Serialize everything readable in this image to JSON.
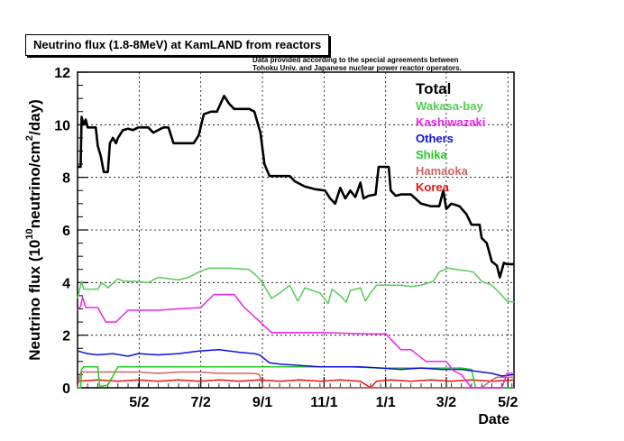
{
  "chart_data": {
    "type": "line",
    "title": "Neutrino flux (1.8-8MeV) at KamLAND from reactors",
    "notes": [
      "Data provided according to the special agreements between",
      "Tohoku Univ. and Japanese nuclear power reactor operators."
    ],
    "xlabel": "Date",
    "ylabel_main": "Neutrino flux (10",
    "ylabel_exp": "10",
    "ylabel_mid": "neutrino/cm",
    "ylabel_exp2": "2",
    "ylabel_end": "/day)",
    "x_unit": "days since start of plot",
    "xlim": [
      0,
      432
    ],
    "ylim": [
      0,
      12
    ],
    "y_ticks": [
      0,
      2,
      4,
      6,
      8,
      10,
      12
    ],
    "x_ticks": [
      {
        "label": "5/2",
        "x": 61
      },
      {
        "label": "7/2",
        "x": 122
      },
      {
        "label": "9/1",
        "x": 183
      },
      {
        "label": "11/1",
        "x": 244
      },
      {
        "label": "1/1",
        "x": 305
      },
      {
        "label": "3/2",
        "x": 365
      },
      {
        "label": "5/2",
        "x": 426
      }
    ],
    "grid": true,
    "legend_position": "top-right",
    "series": [
      {
        "name": "Total",
        "color": "#000000",
        "points": [
          [
            0,
            8.4
          ],
          [
            3,
            8.4
          ],
          [
            4,
            10.3
          ],
          [
            6,
            10.0
          ],
          [
            8,
            10.2
          ],
          [
            10,
            9.9
          ],
          [
            18,
            9.9
          ],
          [
            20,
            9.2
          ],
          [
            23,
            8.8
          ],
          [
            26,
            8.2
          ],
          [
            30,
            8.2
          ],
          [
            32,
            9.3
          ],
          [
            35,
            9.5
          ],
          [
            38,
            9.3
          ],
          [
            40,
            9.5
          ],
          [
            45,
            9.8
          ],
          [
            50,
            9.85
          ],
          [
            55,
            9.8
          ],
          [
            60,
            9.9
          ],
          [
            70,
            9.9
          ],
          [
            75,
            9.7
          ],
          [
            80,
            9.8
          ],
          [
            85,
            9.9
          ],
          [
            90,
            9.9
          ],
          [
            95,
            9.3
          ],
          [
            105,
            9.3
          ],
          [
            115,
            9.3
          ],
          [
            120,
            9.6
          ],
          [
            125,
            10.4
          ],
          [
            132,
            10.5
          ],
          [
            138,
            10.5
          ],
          [
            145,
            11.1
          ],
          [
            150,
            10.8
          ],
          [
            155,
            10.6
          ],
          [
            160,
            10.6
          ],
          [
            170,
            10.6
          ],
          [
            175,
            10.5
          ],
          [
            181,
            9.7
          ],
          [
            185,
            8.5
          ],
          [
            190,
            8.05
          ],
          [
            200,
            8.05
          ],
          [
            210,
            8.05
          ],
          [
            215,
            7.85
          ],
          [
            225,
            7.65
          ],
          [
            235,
            7.55
          ],
          [
            245,
            7.5
          ],
          [
            250,
            7.2
          ],
          [
            255,
            7.0
          ],
          [
            260,
            7.6
          ],
          [
            265,
            7.2
          ],
          [
            270,
            7.5
          ],
          [
            275,
            7.25
          ],
          [
            280,
            7.8
          ],
          [
            283,
            7.2
          ],
          [
            288,
            7.3
          ],
          [
            295,
            7.35
          ],
          [
            298,
            8.4
          ],
          [
            308,
            8.4
          ],
          [
            310,
            7.5
          ],
          [
            315,
            7.3
          ],
          [
            320,
            7.35
          ],
          [
            330,
            7.35
          ],
          [
            340,
            7.0
          ],
          [
            350,
            6.9
          ],
          [
            358,
            6.9
          ],
          [
            362,
            7.5
          ],
          [
            365,
            6.8
          ],
          [
            370,
            7.0
          ],
          [
            378,
            6.9
          ],
          [
            385,
            6.6
          ],
          [
            390,
            6.2
          ],
          [
            398,
            6.2
          ],
          [
            400,
            5.7
          ],
          [
            405,
            5.5
          ],
          [
            410,
            4.8
          ],
          [
            415,
            4.65
          ],
          [
            418,
            4.2
          ],
          [
            422,
            4.75
          ],
          [
            425,
            4.7
          ],
          [
            432,
            4.7
          ]
        ]
      },
      {
        "name": "Wakasa-bay",
        "color": "#55cc55",
        "points": [
          [
            0,
            3.4
          ],
          [
            3,
            3.9
          ],
          [
            4,
            4.05
          ],
          [
            6,
            3.75
          ],
          [
            20,
            3.75
          ],
          [
            24,
            4.0
          ],
          [
            30,
            3.8
          ],
          [
            40,
            4.15
          ],
          [
            45,
            4.05
          ],
          [
            55,
            4.05
          ],
          [
            70,
            4.0
          ],
          [
            80,
            4.2
          ],
          [
            90,
            4.15
          ],
          [
            100,
            4.1
          ],
          [
            110,
            4.2
          ],
          [
            120,
            4.4
          ],
          [
            130,
            4.55
          ],
          [
            150,
            4.55
          ],
          [
            170,
            4.5
          ],
          [
            180,
            4.15
          ],
          [
            186,
            3.8
          ],
          [
            192,
            3.4
          ],
          [
            200,
            3.6
          ],
          [
            210,
            3.9
          ],
          [
            218,
            3.3
          ],
          [
            225,
            3.8
          ],
          [
            240,
            3.6
          ],
          [
            248,
            3.2
          ],
          [
            252,
            3.75
          ],
          [
            260,
            3.5
          ],
          [
            266,
            3.25
          ],
          [
            270,
            3.7
          ],
          [
            280,
            3.8
          ],
          [
            285,
            3.3
          ],
          [
            290,
            3.6
          ],
          [
            296,
            3.9
          ],
          [
            310,
            3.9
          ],
          [
            320,
            3.9
          ],
          [
            330,
            3.85
          ],
          [
            340,
            3.9
          ],
          [
            352,
            4.05
          ],
          [
            358,
            4.4
          ],
          [
            366,
            4.55
          ],
          [
            375,
            4.5
          ],
          [
            385,
            4.45
          ],
          [
            392,
            4.4
          ],
          [
            400,
            4.05
          ],
          [
            410,
            3.9
          ],
          [
            418,
            3.6
          ],
          [
            425,
            3.3
          ],
          [
            432,
            3.25
          ]
        ]
      },
      {
        "name": "Kashiwazaki",
        "color": "#ee22ee",
        "points": [
          [
            0,
            2.95
          ],
          [
            3,
            3.1
          ],
          [
            5,
            3.45
          ],
          [
            8,
            3.05
          ],
          [
            20,
            3.05
          ],
          [
            28,
            2.5
          ],
          [
            38,
            2.5
          ],
          [
            50,
            2.95
          ],
          [
            80,
            2.95
          ],
          [
            100,
            3.0
          ],
          [
            122,
            3.05
          ],
          [
            135,
            3.55
          ],
          [
            155,
            3.55
          ],
          [
            165,
            3.05
          ],
          [
            178,
            2.6
          ],
          [
            192,
            2.1
          ],
          [
            210,
            2.1
          ],
          [
            240,
            2.1
          ],
          [
            290,
            2.05
          ],
          [
            305,
            2.05
          ],
          [
            320,
            1.45
          ],
          [
            330,
            1.45
          ],
          [
            345,
            1.0
          ],
          [
            365,
            1.0
          ],
          [
            372,
            0.65
          ],
          [
            380,
            0.5
          ],
          [
            390,
            0.0
          ],
          [
            400,
            0.0
          ],
          [
            420,
            0.0
          ],
          [
            425,
            0.55
          ],
          [
            432,
            0.55
          ]
        ]
      },
      {
        "name": "Others",
        "color": "#1111dd",
        "points": [
          [
            0,
            1.4
          ],
          [
            10,
            1.3
          ],
          [
            20,
            1.25
          ],
          [
            35,
            1.3
          ],
          [
            50,
            1.2
          ],
          [
            60,
            1.3
          ],
          [
            80,
            1.25
          ],
          [
            100,
            1.3
          ],
          [
            120,
            1.4
          ],
          [
            140,
            1.45
          ],
          [
            160,
            1.35
          ],
          [
            175,
            1.3
          ],
          [
            180,
            1.25
          ],
          [
            185,
            1.1
          ],
          [
            190,
            0.95
          ],
          [
            200,
            0.9
          ],
          [
            220,
            0.85
          ],
          [
            240,
            0.8
          ],
          [
            260,
            0.8
          ],
          [
            280,
            0.8
          ],
          [
            300,
            0.75
          ],
          [
            320,
            0.7
          ],
          [
            340,
            0.75
          ],
          [
            360,
            0.7
          ],
          [
            380,
            0.7
          ],
          [
            400,
            0.6
          ],
          [
            410,
            0.55
          ],
          [
            420,
            0.45
          ],
          [
            432,
            0.5
          ]
        ]
      },
      {
        "name": "Shika",
        "color": "#22cc22",
        "points": [
          [
            0,
            0.0
          ],
          [
            3,
            0.0
          ],
          [
            4,
            0.7
          ],
          [
            6,
            0.8
          ],
          [
            20,
            0.8
          ],
          [
            22,
            0.05
          ],
          [
            30,
            0.1
          ],
          [
            40,
            0.8
          ],
          [
            70,
            0.8
          ],
          [
            100,
            0.8
          ],
          [
            140,
            0.8
          ],
          [
            180,
            0.8
          ],
          [
            210,
            0.8
          ],
          [
            240,
            0.8
          ],
          [
            270,
            0.8
          ],
          [
            300,
            0.75
          ],
          [
            330,
            0.75
          ],
          [
            360,
            0.75
          ],
          [
            380,
            0.75
          ],
          [
            390,
            0.7
          ],
          [
            394,
            0.0
          ],
          [
            410,
            0.0
          ],
          [
            420,
            0.0
          ],
          [
            432,
            0.0
          ]
        ]
      },
      {
        "name": "Hamaoka",
        "color": "#cc6666",
        "points": [
          [
            0,
            0.0
          ],
          [
            3,
            0.6
          ],
          [
            5,
            0.6
          ],
          [
            30,
            0.6
          ],
          [
            60,
            0.6
          ],
          [
            80,
            0.55
          ],
          [
            100,
            0.6
          ],
          [
            120,
            0.6
          ],
          [
            140,
            0.55
          ],
          [
            160,
            0.55
          ],
          [
            175,
            0.55
          ],
          [
            180,
            0.5
          ],
          [
            184,
            0.0
          ],
          [
            200,
            0.0
          ],
          [
            250,
            0.0
          ],
          [
            300,
            0.0
          ],
          [
            330,
            0.0
          ],
          [
            360,
            0.0
          ],
          [
            380,
            0.0
          ],
          [
            400,
            0.0
          ],
          [
            410,
            0.3
          ],
          [
            415,
            0.4
          ],
          [
            425,
            0.4
          ],
          [
            432,
            0.4
          ]
        ]
      },
      {
        "name": "Korea",
        "color": "#ee1111",
        "points": [
          [
            0,
            0.25
          ],
          [
            20,
            0.3
          ],
          [
            40,
            0.25
          ],
          [
            60,
            0.3
          ],
          [
            80,
            0.25
          ],
          [
            100,
            0.3
          ],
          [
            120,
            0.25
          ],
          [
            140,
            0.3
          ],
          [
            160,
            0.25
          ],
          [
            180,
            0.3
          ],
          [
            200,
            0.25
          ],
          [
            220,
            0.3
          ],
          [
            240,
            0.25
          ],
          [
            260,
            0.3
          ],
          [
            280,
            0.25
          ],
          [
            290,
            0.0
          ],
          [
            296,
            0.25
          ],
          [
            310,
            0.3
          ],
          [
            330,
            0.25
          ],
          [
            350,
            0.3
          ],
          [
            370,
            0.25
          ],
          [
            390,
            0.3
          ],
          [
            410,
            0.25
          ],
          [
            432,
            0.3
          ]
        ]
      }
    ]
  }
}
